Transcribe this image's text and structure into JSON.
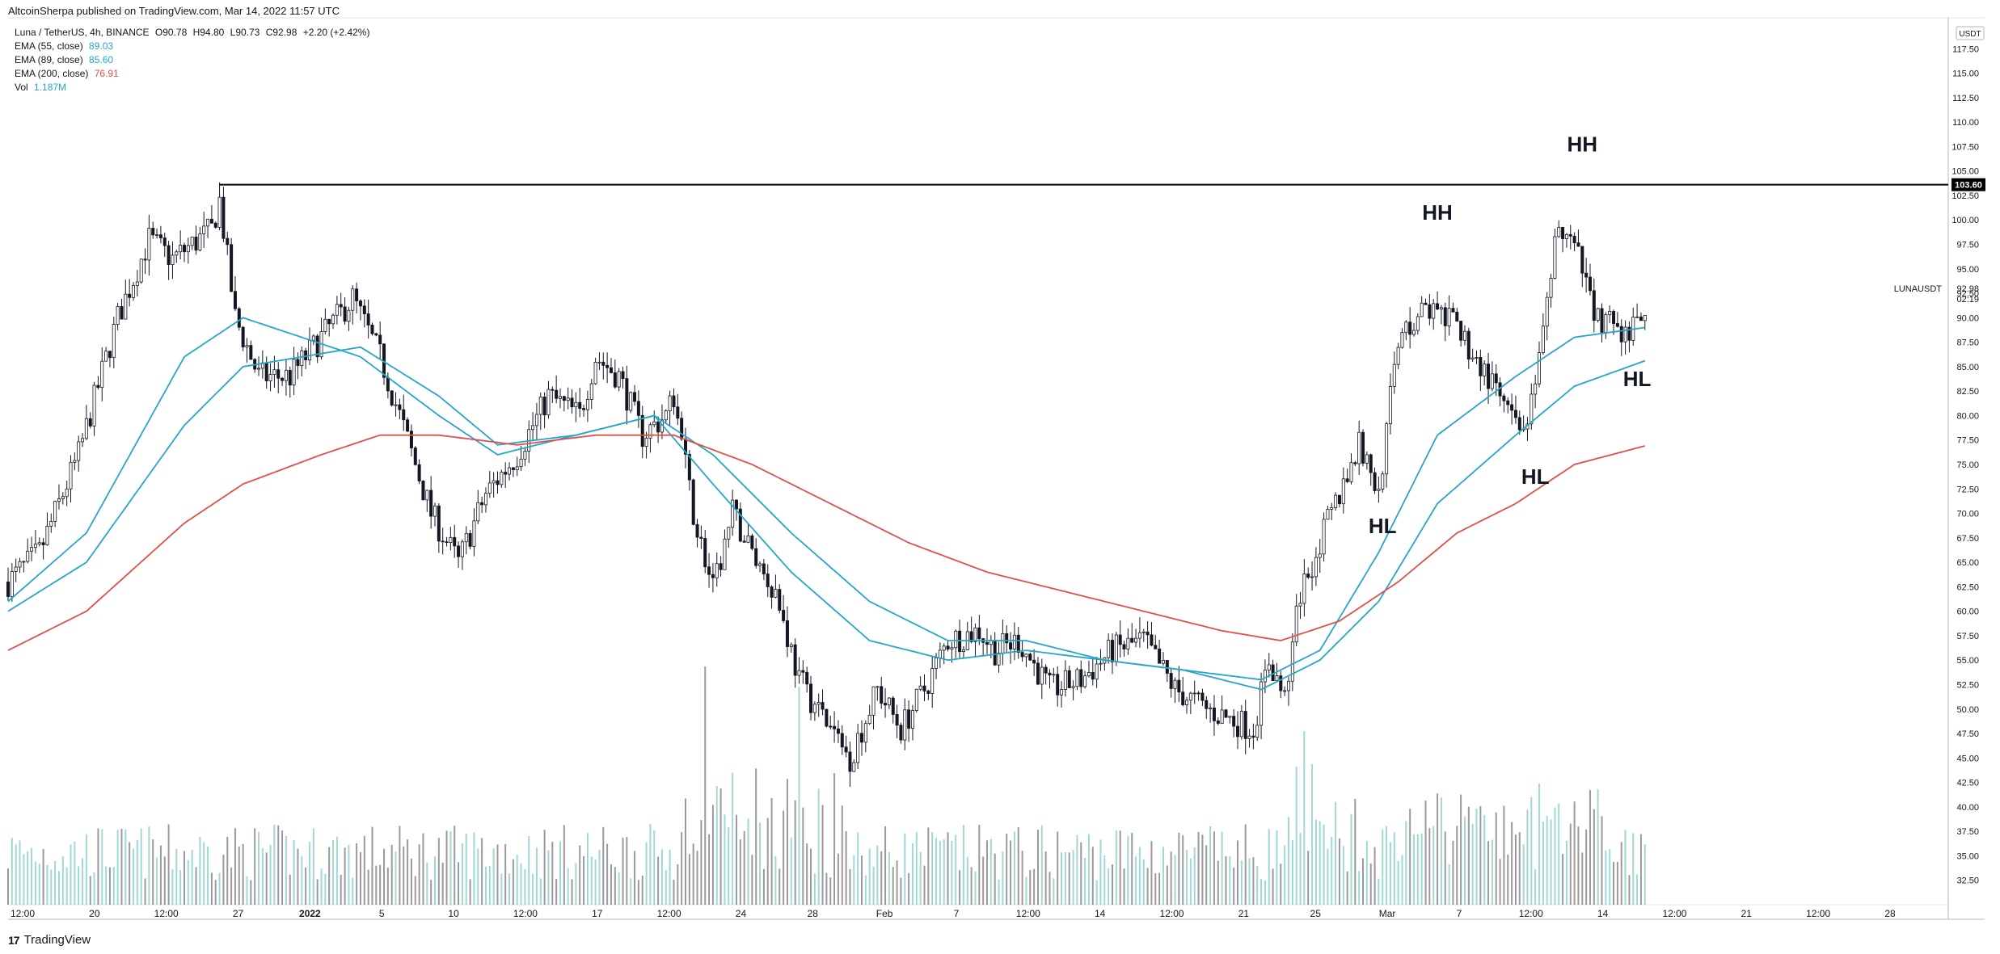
{
  "header": {
    "text": "AltcoinSherpa published on TradingView.com, Mar 14, 2022 11:57 UTC"
  },
  "legend": {
    "symbol": "Luna / TetherUS, 4h, BINANCE",
    "ohlc": {
      "o": "O90.78",
      "h": "H94.80",
      "l": "L90.73",
      "c": "C92.98",
      "chg": "+2.20 (+2.42%)"
    },
    "indicators": [
      {
        "label": "EMA (55, close)",
        "value": "89.03",
        "color": "#26a6c9"
      },
      {
        "label": "EMA (89, close)",
        "value": "85.60",
        "color": "#26a6c9"
      },
      {
        "label": "EMA (200, close)",
        "value": "76.91",
        "color": "#e0504a"
      },
      {
        "label": "Vol",
        "value": "1.187M",
        "color": "#26a6c9"
      }
    ]
  },
  "footer": {
    "brand": "TradingView",
    "logo": "17"
  },
  "chart_data": {
    "type": "candlestick",
    "currency_badge": "USDT",
    "ylim": [
      30.0,
      120.0
    ],
    "y_ticks": [
      "32.50",
      "35.00",
      "37.50",
      "40.00",
      "42.50",
      "45.00",
      "47.50",
      "50.00",
      "52.50",
      "55.00",
      "57.50",
      "60.00",
      "62.50",
      "65.00",
      "67.50",
      "70.00",
      "72.50",
      "75.00",
      "77.50",
      "80.00",
      "82.50",
      "85.00",
      "87.50",
      "90.00",
      "92.50",
      "95.00",
      "97.50",
      "100.00",
      "102.50",
      "105.00",
      "107.50",
      "110.00",
      "112.50",
      "115.00",
      "117.50"
    ],
    "x_ticks": [
      "12:00",
      "20",
      "12:00",
      "27",
      "2022",
      "5",
      "10",
      "12:00",
      "17",
      "12:00",
      "24",
      "28",
      "Feb",
      "7",
      "12:00",
      "14",
      "12:00",
      "21",
      "25",
      "Mar",
      "7",
      "12:00",
      "14",
      "12:00",
      "21",
      "12:00",
      "28"
    ],
    "price_keypoints": [
      [
        0,
        63
      ],
      [
        8,
        66
      ],
      [
        18,
        76
      ],
      [
        28,
        90
      ],
      [
        36,
        98
      ],
      [
        42,
        96
      ],
      [
        52,
        99
      ],
      [
        54,
        102
      ],
      [
        58,
        90
      ],
      [
        64,
        84
      ],
      [
        72,
        84
      ],
      [
        80,
        88
      ],
      [
        88,
        92
      ],
      [
        95,
        86
      ],
      [
        100,
        80
      ],
      [
        108,
        70
      ],
      [
        115,
        65
      ],
      [
        122,
        72
      ],
      [
        130,
        76
      ],
      [
        138,
        82
      ],
      [
        146,
        80
      ],
      [
        150,
        86
      ],
      [
        156,
        84
      ],
      [
        162,
        78
      ],
      [
        168,
        80
      ],
      [
        170,
        82
      ],
      [
        175,
        70
      ],
      [
        180,
        62
      ],
      [
        185,
        70
      ],
      [
        190,
        66
      ],
      [
        196,
        62
      ],
      [
        202,
        53
      ],
      [
        210,
        48
      ],
      [
        215,
        45
      ],
      [
        222,
        52
      ],
      [
        228,
        48
      ],
      [
        234,
        52
      ],
      [
        240,
        57
      ],
      [
        248,
        58
      ],
      [
        252,
        56
      ],
      [
        258,
        57
      ],
      [
        266,
        52
      ],
      [
        274,
        53
      ],
      [
        282,
        56
      ],
      [
        290,
        57
      ],
      [
        298,
        52
      ],
      [
        306,
        50
      ],
      [
        312,
        49
      ],
      [
        318,
        48
      ],
      [
        322,
        55
      ],
      [
        326,
        51
      ],
      [
        330,
        62
      ],
      [
        338,
        70
      ],
      [
        345,
        77
      ],
      [
        350,
        72
      ],
      [
        355,
        88
      ],
      [
        362,
        91
      ],
      [
        370,
        89
      ],
      [
        376,
        85
      ],
      [
        382,
        81
      ],
      [
        386,
        78
      ],
      [
        390,
        82
      ],
      [
        396,
        100
      ],
      [
        400,
        97
      ],
      [
        406,
        90
      ],
      [
        414,
        88
      ],
      [
        418,
        91
      ]
    ],
    "ema55": [
      [
        0,
        61
      ],
      [
        20,
        68
      ],
      [
        45,
        86
      ],
      [
        60,
        90
      ],
      [
        90,
        86
      ],
      [
        110,
        80
      ],
      [
        125,
        76
      ],
      [
        145,
        78
      ],
      [
        165,
        80
      ],
      [
        180,
        73
      ],
      [
        200,
        64
      ],
      [
        220,
        57
      ],
      [
        240,
        55
      ],
      [
        260,
        56
      ],
      [
        280,
        55
      ],
      [
        300,
        54
      ],
      [
        320,
        53
      ],
      [
        335,
        56
      ],
      [
        350,
        66
      ],
      [
        365,
        78
      ],
      [
        385,
        84
      ],
      [
        400,
        88
      ],
      [
        418,
        89
      ]
    ],
    "ema89": [
      [
        0,
        60
      ],
      [
        20,
        65
      ],
      [
        45,
        79
      ],
      [
        60,
        85
      ],
      [
        90,
        87
      ],
      [
        110,
        82
      ],
      [
        125,
        77
      ],
      [
        145,
        78
      ],
      [
        165,
        80
      ],
      [
        180,
        76
      ],
      [
        200,
        68
      ],
      [
        220,
        61
      ],
      [
        240,
        57
      ],
      [
        260,
        57
      ],
      [
        280,
        55
      ],
      [
        300,
        54
      ],
      [
        320,
        52
      ],
      [
        335,
        55
      ],
      [
        350,
        61
      ],
      [
        365,
        71
      ],
      [
        385,
        78
      ],
      [
        400,
        83
      ],
      [
        418,
        85.6
      ]
    ],
    "ema200": [
      [
        0,
        56
      ],
      [
        20,
        60
      ],
      [
        45,
        69
      ],
      [
        60,
        73
      ],
      [
        80,
        76
      ],
      [
        95,
        78
      ],
      [
        110,
        78
      ],
      [
        130,
        77
      ],
      [
        150,
        78
      ],
      [
        170,
        78
      ],
      [
        190,
        75
      ],
      [
        210,
        71
      ],
      [
        230,
        67
      ],
      [
        250,
        64
      ],
      [
        270,
        62
      ],
      [
        290,
        60
      ],
      [
        310,
        58
      ],
      [
        325,
        57
      ],
      [
        340,
        59
      ],
      [
        355,
        63
      ],
      [
        370,
        68
      ],
      [
        385,
        71
      ],
      [
        400,
        75
      ],
      [
        418,
        76.9
      ]
    ],
    "resistance": {
      "value": 103.6,
      "label": "103.60",
      "from_index": 54
    },
    "current": {
      "symbol": "LUNAUSDT",
      "price": "92.98",
      "countdown": "02:19"
    },
    "annotations": [
      {
        "text": "HH",
        "index": 365,
        "price": 100.0
      },
      {
        "text": "HH",
        "index": 402,
        "price": 107.0
      },
      {
        "text": "HL",
        "index": 351,
        "price": 68.0
      },
      {
        "text": "HL",
        "index": 390,
        "price": 73.0
      },
      {
        "text": "HL",
        "index": 416,
        "price": 83.0
      }
    ],
    "colors": {
      "up": "#131722",
      "down": "#131722",
      "vol_up": "#8fd1cd",
      "vol_down": "#888888",
      "ema_fast": "#26a6c9",
      "ema_slow": "#e0504a"
    }
  }
}
